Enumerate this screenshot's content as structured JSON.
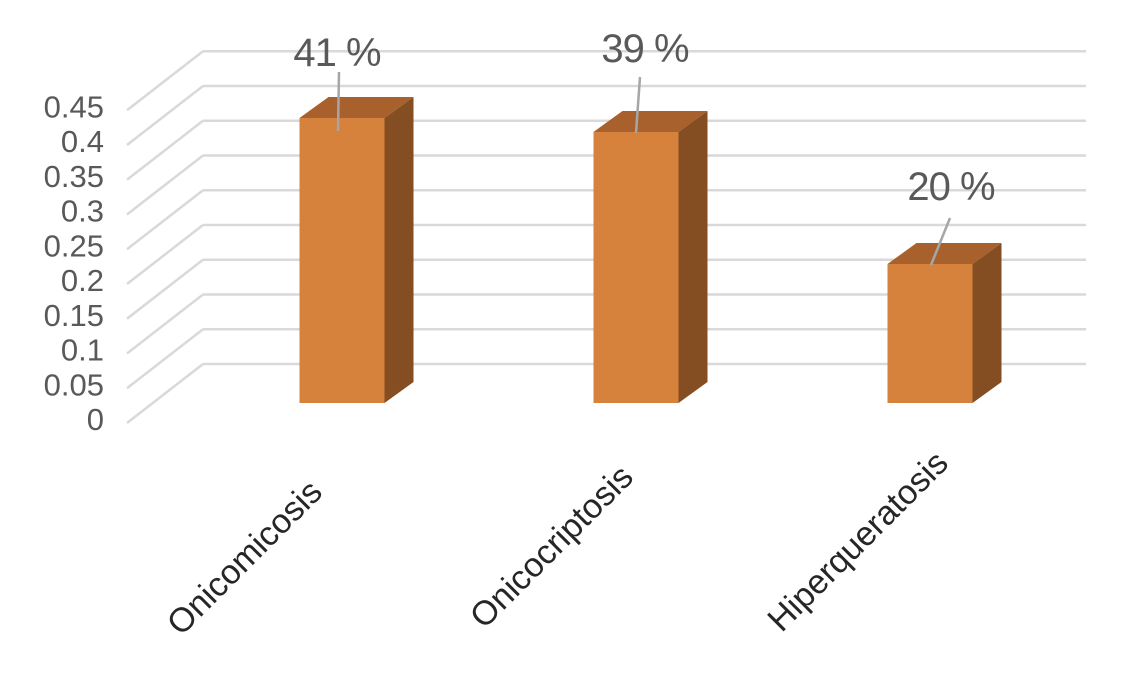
{
  "chart_data": {
    "type": "bar",
    "style": "3d-column",
    "title": "",
    "xlabel": "",
    "ylabel": "",
    "categories": [
      "Onicomicosis",
      "Onicocriptosis",
      "Hiperqueratosis"
    ],
    "values": [
      0.41,
      0.39,
      0.2
    ],
    "data_labels": [
      "41 %",
      "39 %",
      "20 %"
    ],
    "yticks": [
      "0",
      "0.05",
      "0.1",
      "0.15",
      "0.2",
      "0.25",
      "0.3",
      "0.35",
      "0.4",
      "0.45"
    ],
    "ytick_step": 0.05,
    "ylim": [
      0,
      0.45
    ],
    "grid": true,
    "legend_position": "none",
    "colors": {
      "bar_front": "#D6813C",
      "bar_top": "#A8612C",
      "bar_side": "#844D22",
      "gridline": "#D9D9D9",
      "tick_label": "#595959",
      "data_label": "#595959",
      "category_label": "#262626",
      "leader_line": "#A6A6A6",
      "background": "#FFFFFF"
    }
  }
}
